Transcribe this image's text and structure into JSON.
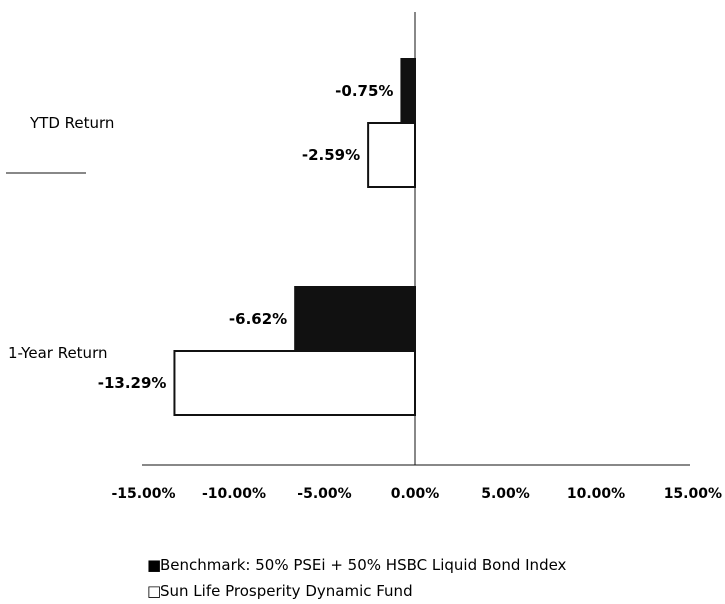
{
  "chart_data": {
    "type": "bar",
    "orientation": "horizontal",
    "categories": [
      "YTD Return",
      "1-Year Return"
    ],
    "series": [
      {
        "name": "Benchmark: 50% PSEi + 50% HSBC Liquid Bond Index",
        "values": [
          -0.75,
          -6.62
        ],
        "value_labels": [
          "-0.75%",
          "-6.62%"
        ],
        "color": "#111111",
        "legend_marker": "■"
      },
      {
        "name": "Sun Life Prosperity Dynamic Fund",
        "values": [
          -2.59,
          -13.29
        ],
        "value_labels": [
          "-2.59%",
          "-13.29%"
        ],
        "color": "#ffffff",
        "legend_marker": "□"
      }
    ],
    "xlim": [
      -15,
      15
    ],
    "xticks": [
      -15,
      -10,
      -5,
      0,
      5,
      10,
      15
    ],
    "xtick_labels": [
      "-15.00%",
      "-10.00%",
      "-5.00%",
      "0.00%",
      "5.00%",
      "10.00%",
      "15.00%"
    ],
    "legend_position": "bottom",
    "grid": false
  }
}
